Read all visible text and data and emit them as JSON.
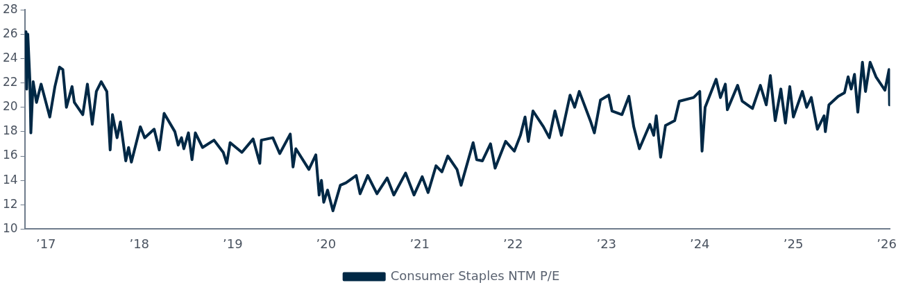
{
  "chart_data": {
    "type": "line",
    "legend": "bottom",
    "grid": false,
    "marker": "none",
    "line_style": "solid",
    "xlim": [
      "2016-10-10",
      "2026-01-14"
    ],
    "xticks": [
      {
        "value": "2017",
        "label": "’17"
      },
      {
        "value": "2018",
        "label": "’18"
      },
      {
        "value": "2019",
        "label": "’19"
      },
      {
        "value": "2020",
        "label": "’20"
      },
      {
        "value": "2021",
        "label": "’21"
      },
      {
        "value": "2022",
        "label": "’22"
      },
      {
        "value": "2023",
        "label": "’23"
      },
      {
        "value": "2024",
        "label": "’24"
      },
      {
        "value": "2025",
        "label": "’25"
      },
      {
        "value": "2026",
        "label": "’26"
      }
    ],
    "ylim": [
      10,
      28
    ],
    "yticks": [
      10,
      12,
      14,
      16,
      18,
      20,
      22,
      24,
      26,
      28
    ],
    "x": [
      "2016-10-15",
      "2016-10-18",
      "2016-10-22",
      "2016-10-30",
      "2016-11-03",
      "2016-11-12",
      "2016-11-25",
      "2016-12-13",
      "2017-01-16",
      "2017-02-05",
      "2017-02-23",
      "2017-03-08",
      "2017-03-22",
      "2017-04-13",
      "2017-04-22",
      "2017-05-25",
      "2017-06-12",
      "2017-07-01",
      "2017-07-17",
      "2017-08-05",
      "2017-08-27",
      "2017-09-09",
      "2017-09-18",
      "2017-10-06",
      "2017-10-19",
      "2017-11-09",
      "2017-11-20",
      "2017-12-01",
      "2018-01-05",
      "2018-01-22",
      "2018-02-28",
      "2018-03-20",
      "2018-04-08",
      "2018-05-20",
      "2018-06-02",
      "2018-06-15",
      "2018-06-24",
      "2018-07-12",
      "2018-07-26",
      "2018-08-08",
      "2018-09-05",
      "2018-10-20",
      "2018-11-25",
      "2018-12-09",
      "2018-12-22",
      "2019-02-06",
      "2019-03-22",
      "2019-04-17",
      "2019-04-23",
      "2019-06-07",
      "2019-07-04",
      "2019-08-14",
      "2019-08-25",
      "2019-09-05",
      "2019-10-26",
      "2019-11-22",
      "2019-12-05",
      "2019-12-14",
      "2019-12-23",
      "2020-01-07",
      "2020-01-28",
      "2020-02-26",
      "2020-03-19",
      "2020-04-28",
      "2020-05-13",
      "2020-06-12",
      "2020-07-18",
      "2020-08-27",
      "2020-09-22",
      "2020-11-07",
      "2020-12-10",
      "2021-01-11",
      "2021-02-03",
      "2021-03-06",
      "2021-03-29",
      "2021-04-21",
      "2021-05-27",
      "2021-06-12",
      "2021-07-29",
      "2021-08-12",
      "2021-09-03",
      "2021-10-05",
      "2021-10-23",
      "2021-12-03",
      "2022-01-06",
      "2022-01-30",
      "2022-02-17",
      "2022-03-02",
      "2022-03-20",
      "2022-04-30",
      "2022-05-23",
      "2022-06-14",
      "2022-07-09",
      "2022-08-12",
      "2022-08-30",
      "2022-09-17",
      "2022-11-01",
      "2022-11-15",
      "2022-12-09",
      "2023-01-10",
      "2023-01-23",
      "2023-03-03",
      "2023-03-30",
      "2023-04-18",
      "2023-05-10",
      "2023-06-20",
      "2023-07-05",
      "2023-07-15",
      "2023-08-01",
      "2023-08-20",
      "2023-09-25",
      "2023-10-13",
      "2023-12-08",
      "2024-01-01",
      "2024-01-10",
      "2024-01-22",
      "2024-03-05",
      "2024-03-22",
      "2024-04-10",
      "2024-04-18",
      "2024-05-28",
      "2024-06-15",
      "2024-07-25",
      "2024-08-25",
      "2024-09-17",
      "2024-10-03",
      "2024-10-22",
      "2024-11-13",
      "2024-12-01",
      "2024-12-18",
      "2025-01-01",
      "2025-02-05",
      "2025-02-22",
      "2025-03-12",
      "2025-04-05",
      "2025-05-01",
      "2025-05-06",
      "2025-05-20",
      "2025-06-25",
      "2025-07-20",
      "2025-08-03",
      "2025-08-15",
      "2025-08-28",
      "2025-09-10",
      "2025-09-28",
      "2025-10-10",
      "2025-10-28",
      "2025-11-20",
      "2025-12-25",
      "2026-01-10",
      "2026-01-12"
    ],
    "series": [
      {
        "name": "Consumer Staples NTM P/E",
        "color": "#002845",
        "values": [
          26.2,
          21.5,
          26,
          22.3,
          17.9,
          22.1,
          20.4,
          21.9,
          19.2,
          21.7,
          23.3,
          23.1,
          20,
          21.7,
          20.4,
          19.4,
          21.9,
          18.6,
          21.3,
          22.1,
          21.3,
          16.5,
          19.4,
          17.5,
          18.8,
          15.6,
          16.7,
          15.5,
          18.4,
          17.5,
          18.2,
          16.5,
          19.5,
          18,
          16.9,
          17.5,
          16.6,
          17.9,
          15.7,
          17.9,
          16.7,
          17.3,
          16.3,
          15.4,
          17.1,
          16.3,
          17.4,
          15.4,
          17.3,
          17.5,
          16.2,
          17.8,
          15.1,
          16.6,
          14.9,
          16.1,
          12.8,
          14,
          12.2,
          13.2,
          11.5,
          13.6,
          13.8,
          14.4,
          12.9,
          14.4,
          12.9,
          14.2,
          12.8,
          14.6,
          12.8,
          14.3,
          13,
          15.2,
          14.7,
          16,
          14.9,
          13.6,
          17.1,
          15.7,
          15.6,
          17,
          15,
          17.2,
          16.4,
          17.7,
          19.2,
          17.2,
          19.7,
          18.4,
          17.5,
          19.7,
          17.7,
          21,
          20,
          21.3,
          18.8,
          17.9,
          20.6,
          21,
          19.7,
          19.4,
          20.9,
          18.4,
          16.6,
          18.6,
          17.7,
          19.3,
          15.9,
          18.5,
          18.9,
          20.5,
          20.8,
          21.3,
          16.4,
          20,
          22.3,
          20.8,
          21.9,
          19.8,
          21.8,
          20.5,
          19.9,
          21.8,
          20.2,
          22.6,
          18.9,
          21.5,
          18.7,
          21.7,
          19.2,
          21.3,
          20,
          20.8,
          18.2,
          19.3,
          18,
          20.2,
          20.9,
          21.2,
          22.5,
          21.5,
          22.7,
          19.6,
          23.7,
          21.3,
          23.7,
          22.5,
          21.4,
          23.1,
          20.2
        ]
      }
    ]
  }
}
